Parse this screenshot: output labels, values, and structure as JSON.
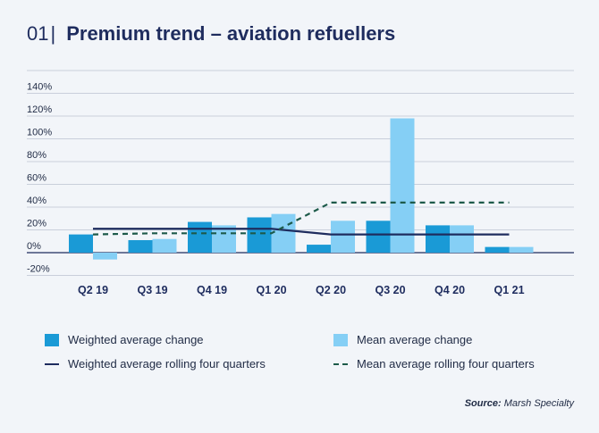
{
  "header": {
    "number": "01",
    "separator": "|",
    "title": "Premium trend – aviation refuellers"
  },
  "chart_data": {
    "type": "bar",
    "categories": [
      "Q2 19",
      "Q3 19",
      "Q4 19",
      "Q1 20",
      "Q2 20",
      "Q3 20",
      "Q4 20",
      "Q1 21"
    ],
    "series": [
      {
        "name": "Weighted average change",
        "kind": "bar",
        "color": "#1a9ad6",
        "values": [
          16,
          11,
          27,
          31,
          7,
          28,
          24,
          5
        ]
      },
      {
        "name": "Mean average change",
        "kind": "bar",
        "color": "#85cff5",
        "values": [
          -6,
          12,
          24,
          34,
          28,
          118,
          24,
          5
        ]
      },
      {
        "name": "Weighted average rolling four quarters",
        "kind": "line",
        "color": "#1e2c5e",
        "values": [
          21,
          21,
          21,
          21,
          16,
          16,
          16,
          16
        ]
      },
      {
        "name": "Mean average rolling four quarters",
        "kind": "dashed-line",
        "color": "#1d5a4a",
        "values": [
          16,
          17,
          17,
          17,
          44,
          44,
          44,
          44
        ]
      }
    ],
    "yticks": [
      -20,
      0,
      20,
      40,
      60,
      80,
      100,
      120,
      140
    ],
    "ytick_labels": [
      "-20%",
      "0%",
      "20%",
      "40%",
      "60%",
      "80%",
      "100%",
      "120%",
      "140%"
    ],
    "ylim": [
      -20,
      160
    ],
    "xlabel": "",
    "ylabel": ""
  },
  "legend": {
    "items": [
      {
        "label": "Weighted average change",
        "type": "box",
        "color": "#1a9ad6"
      },
      {
        "label": "Mean average change",
        "type": "box",
        "color": "#85cff5"
      },
      {
        "label": "Weighted average rolling four quarters",
        "type": "line",
        "color": "#1e2c5e"
      },
      {
        "label": "Mean average rolling four quarters",
        "type": "dashed",
        "color": "#1d5a4a"
      }
    ]
  },
  "source": {
    "prefix": "Source:",
    "text": "Marsh Specialty"
  }
}
